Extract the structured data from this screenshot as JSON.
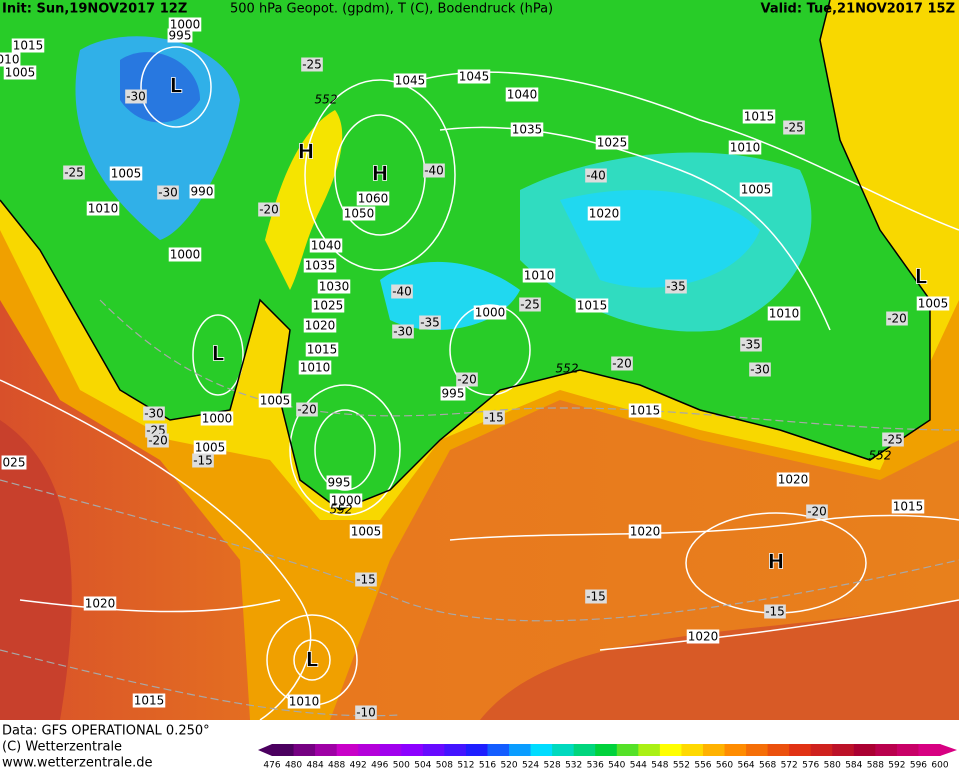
{
  "header": {
    "init": "Init: Sun,19NOV2017 12Z",
    "title": "500 hPa Geopot. (gpdm), T (C), Bodendruck (hPa)",
    "valid": "Valid: Tue,21NOV2017 15Z"
  },
  "footer": {
    "data": "Data: GFS OPERATIONAL 0.250°",
    "copyright": "(C) Wetterzentrale",
    "url": "www.wetterzentrale.de"
  },
  "colorbar": {
    "labels": [
      "476",
      "480",
      "484",
      "488",
      "492",
      "496",
      "500",
      "504",
      "508",
      "512",
      "516",
      "520",
      "524",
      "528",
      "532",
      "536",
      "540",
      "544",
      "548",
      "552",
      "556",
      "560",
      "564",
      "568",
      "572",
      "576",
      "580",
      "584",
      "588",
      "592",
      "596",
      "600"
    ]
  },
  "isobar_labels": [
    "1000",
    "995",
    "1015",
    "010",
    "1005",
    "1045",
    "1045",
    "1040",
    "1035",
    "1025",
    "1015",
    "1010",
    "1005",
    "1005",
    "990",
    "1010",
    "1060",
    "1050",
    "1020",
    "1040",
    "1000",
    "1035",
    "1030",
    "1010",
    "1025",
    "1015",
    "1000",
    "1020",
    "1005",
    "1010",
    "1015",
    "1010",
    "995",
    "1005",
    "1000",
    "1015",
    "1005",
    "025",
    "995",
    "1000",
    "1020",
    "1015",
    "1005",
    "1020",
    "1020",
    "1020",
    "1010",
    "1015"
  ],
  "isotherm_labels": [
    "-25",
    "-30",
    "-25",
    "-30",
    "-20",
    "-40",
    "-40",
    "-25",
    "-40",
    "-35",
    "-30",
    "-25",
    "-35",
    "-20",
    "-35",
    "-30",
    "-20",
    "-20",
    "-20",
    "-15",
    "-30",
    "-25",
    "-20",
    "-15",
    "-25",
    "-20",
    "-15",
    "-15",
    "-15",
    "-10"
  ],
  "geopotential_labels": [
    "552",
    "552",
    "552",
    "552"
  ],
  "pressure_centers": [
    "L",
    "H",
    "H",
    "L",
    "L",
    "H",
    "L"
  ]
}
